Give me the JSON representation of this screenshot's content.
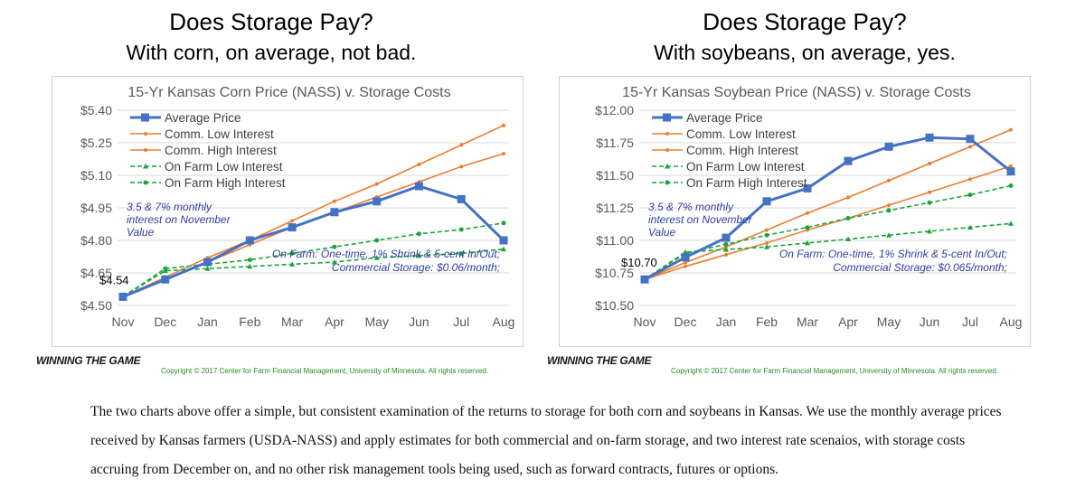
{
  "left": {
    "heading1": "Does Storage Pay?",
    "heading2": "With corn, on average, not bad.",
    "logo_text": "WINNING THE GAME",
    "copyright": "Copyright © 2017 Center for Farm Financial Management, University of Minnesota. All rights reserved."
  },
  "right": {
    "heading1": "Does Storage Pay?",
    "heading2": "With soybeans, on average, yes.",
    "logo_text": "WINNING THE GAME",
    "copyright": "Copyright © 2017 Center for Farm Financial Management, University of Minnesota. All rights reserved."
  },
  "paragraph": {
    "line1": "The two charts above offer a simple, but consistent examination of the returns to storage for both corn and soybeans in Kansas. We use the monthly average prices",
    "line2": "received by Kansas farmers (USDA-NASS) and apply estimates for both commercial and on-farm storage, and two interest rate scenaios, with storage costs",
    "line3": "accruing from December on, and no other risk management tools being used, such as forward contracts, futures or options."
  },
  "colors": {
    "average": "#4472c4",
    "commercial": "#ed7d31",
    "onfarm": "#1aa53a",
    "note": "#2f3ea0",
    "title": "#595959",
    "axis": "#595959"
  },
  "chart_data": [
    {
      "type": "line",
      "title": "15-Yr Kansas Corn Price (NASS) v. Storage Costs",
      "categories": [
        "Nov",
        "Dec",
        "Jan",
        "Feb",
        "Mar",
        "Apr",
        "May",
        "Jun",
        "Jul",
        "Aug"
      ],
      "ylim": [
        4.5,
        5.4
      ],
      "yticks": [
        4.5,
        4.65,
        4.8,
        4.95,
        5.1,
        5.25,
        5.4
      ],
      "ytick_labels": [
        "$4.50",
        "$4.65",
        "$4.80",
        "$4.95",
        "$5.10",
        "$5.25",
        "$5.40"
      ],
      "grid": true,
      "legend_position": "top-left",
      "series": [
        {
          "name": "Average Price",
          "style": "average",
          "values": [
            4.54,
            4.62,
            4.7,
            4.8,
            4.86,
            4.93,
            4.98,
            5.05,
            4.99,
            4.8
          ]
        },
        {
          "name": "Comm. Low Interest",
          "style": "comm",
          "values": [
            4.54,
            4.62,
            4.7,
            4.78,
            4.86,
            4.93,
            5.0,
            5.07,
            5.14,
            5.2
          ]
        },
        {
          "name": "Comm. High Interest",
          "style": "comm",
          "values": [
            4.54,
            4.63,
            4.72,
            4.8,
            4.89,
            4.98,
            5.06,
            5.15,
            5.24,
            5.33
          ]
        },
        {
          "name": "On Farm Low Interest",
          "style": "farm",
          "values": [
            4.54,
            4.66,
            4.67,
            4.68,
            4.69,
            4.7,
            4.72,
            4.73,
            4.74,
            4.76
          ]
        },
        {
          "name": "On Farm High Interest",
          "style": "farm",
          "values": [
            4.54,
            4.67,
            4.69,
            4.71,
            4.74,
            4.77,
            4.8,
            4.83,
            4.85,
            4.88
          ]
        }
      ],
      "data_label": "$4.54",
      "annotation1": [
        "3.5 & 7% monthly",
        "interest on November",
        "Value"
      ],
      "annotation2": [
        "On Farm: One-time, 1% Shrink & 5-cent In/Out;",
        "Commercial Storage: $0.06/month;"
      ]
    },
    {
      "type": "line",
      "title": "15-Yr Kansas Soybean Price (NASS) v. Storage Costs",
      "categories": [
        "Nov",
        "Dec",
        "Jan",
        "Feb",
        "Mar",
        "Apr",
        "May",
        "Jun",
        "Jul",
        "Aug"
      ],
      "ylim": [
        10.5,
        12.0
      ],
      "yticks": [
        10.5,
        10.75,
        11.0,
        11.25,
        11.5,
        11.75,
        12.0
      ],
      "ytick_labels": [
        "$10.50",
        "$10.75",
        "$11.00",
        "$11.25",
        "$11.50",
        "$11.75",
        "$12.00"
      ],
      "grid": true,
      "legend_position": "top-left",
      "series": [
        {
          "name": "Average Price",
          "style": "average",
          "values": [
            10.7,
            10.87,
            11.02,
            11.3,
            11.4,
            11.61,
            11.72,
            11.79,
            11.78,
            11.53
          ]
        },
        {
          "name": "Comm. Low Interest",
          "style": "comm",
          "values": [
            10.7,
            10.8,
            10.89,
            10.98,
            11.08,
            11.17,
            11.27,
            11.37,
            11.47,
            11.57
          ]
        },
        {
          "name": "Comm. High Interest",
          "style": "comm",
          "values": [
            10.7,
            10.83,
            10.95,
            11.08,
            11.21,
            11.33,
            11.46,
            11.59,
            11.72,
            11.85
          ]
        },
        {
          "name": "On Farm Low Interest",
          "style": "farm",
          "values": [
            10.7,
            10.91,
            10.93,
            10.95,
            10.98,
            11.01,
            11.04,
            11.07,
            11.1,
            11.13
          ]
        },
        {
          "name": "On Farm High Interest",
          "style": "farm",
          "values": [
            10.7,
            10.9,
            10.97,
            11.04,
            11.1,
            11.17,
            11.23,
            11.29,
            11.35,
            11.42
          ]
        }
      ],
      "data_label": "$10.70",
      "annotation1": [
        "3.5 & 7% monthly",
        "interest on November",
        "Value"
      ],
      "annotation2": [
        "On Farm: One-time, 1% Shrink & 5-cent In/Out;",
        "Commercial Storage: $0.065/month;"
      ]
    }
  ]
}
